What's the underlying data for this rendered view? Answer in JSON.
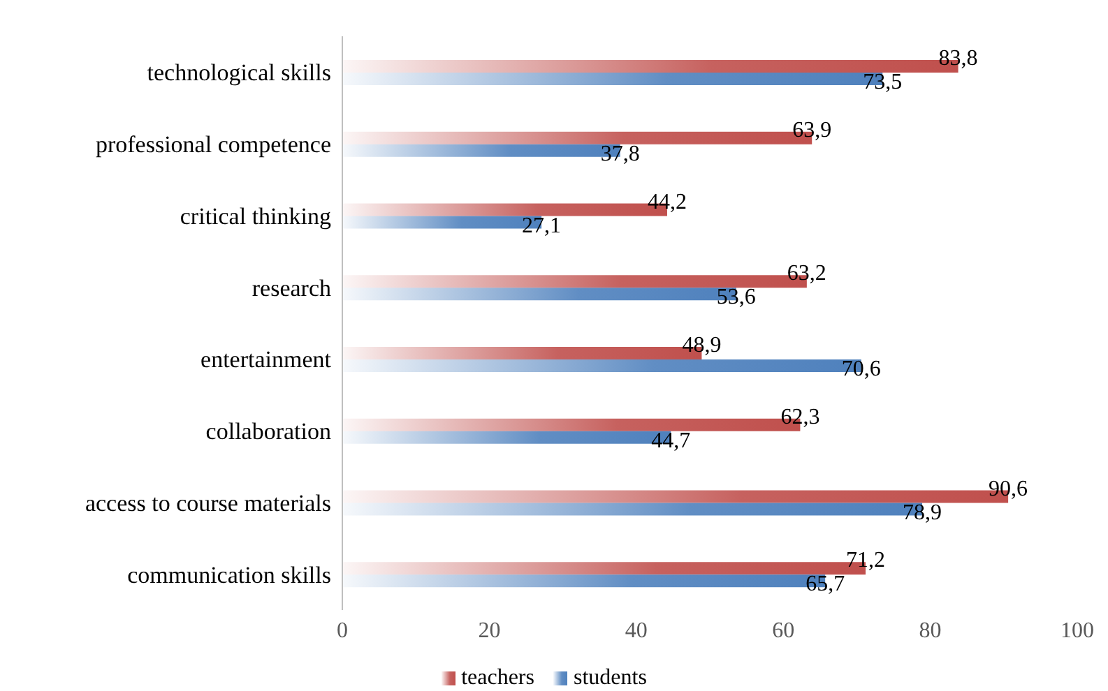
{
  "chart_data": {
    "type": "bar",
    "orientation": "horizontal",
    "categories": [
      "technological skills",
      "professional competence",
      "critical thinking",
      "research",
      "entertainment ",
      "collaboration",
      "access to course materials",
      "communication skills"
    ],
    "series": [
      {
        "name": "teachers",
        "color": "#c0504d",
        "values": [
          83.8,
          63.9,
          44.2,
          63.2,
          48.9,
          62.3,
          90.6,
          71.2
        ],
        "value_labels": [
          "83,8",
          "63,9",
          "44,2",
          "63,2",
          "48,9",
          "62,3",
          "90,6",
          "71,2"
        ]
      },
      {
        "name": "students",
        "color": "#4f81bd",
        "values": [
          73.5,
          37.8,
          27.1,
          53.6,
          70.6,
          44.7,
          78.9,
          65.7
        ],
        "value_labels": [
          "73,5",
          "37,8",
          "27,1",
          "53,6",
          "70,6",
          "44,7",
          "78,9",
          "65,7"
        ]
      }
    ],
    "xlim": [
      0,
      100
    ],
    "xticks": [
      0,
      20,
      40,
      60,
      80,
      100
    ],
    "legend": "bottom"
  }
}
